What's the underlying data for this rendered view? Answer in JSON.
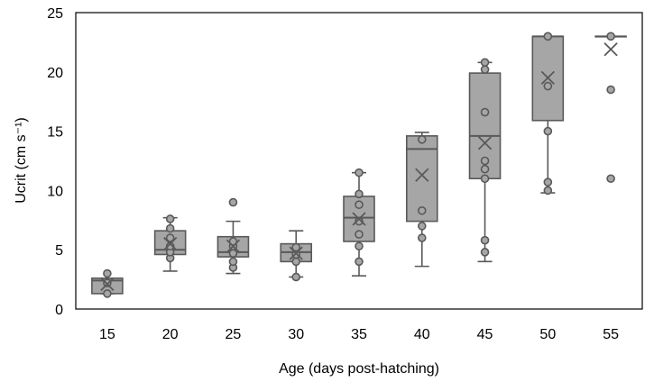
{
  "chart_data": {
    "type": "box",
    "title": "",
    "xlabel": "Age (days post-hatching)",
    "ylabel": "Ucrit (cm s⁻¹)",
    "ylim": [
      0,
      25
    ],
    "yticks": [
      "0",
      "5",
      "10",
      "15",
      "20",
      "25"
    ],
    "categories": [
      "15",
      "20",
      "25",
      "30",
      "35",
      "40",
      "45",
      "50",
      "55"
    ],
    "grid": false,
    "legend": "none",
    "colors": {
      "box_fill": "#a6a6a6",
      "stroke": "#595959",
      "point_fill": "#a6a6a6"
    },
    "boxes": [
      {
        "category": "15",
        "min": 1.3,
        "q1": 1.3,
        "median": 2.4,
        "q3": 2.6,
        "max": 2.6,
        "mean": 2.1,
        "points": [
          1.3,
          2.2,
          3.0
        ]
      },
      {
        "category": "20",
        "min": 3.2,
        "q1": 4.6,
        "median": 5.0,
        "q3": 6.6,
        "max": 7.7,
        "mean": 5.5,
        "points": [
          4.3,
          4.8,
          5.3,
          6.0,
          6.8,
          7.6
        ]
      },
      {
        "category": "25",
        "min": 3.0,
        "q1": 4.4,
        "median": 4.8,
        "q3": 6.1,
        "max": 7.4,
        "mean": 5.3,
        "points": [
          3.5,
          4.0,
          4.7,
          5.3,
          5.7,
          9.0
        ]
      },
      {
        "category": "30",
        "min": 2.7,
        "q1": 4.0,
        "median": 4.8,
        "q3": 5.5,
        "max": 6.6,
        "mean": 4.7,
        "points": [
          2.7,
          4.0,
          4.6,
          5.2
        ]
      },
      {
        "category": "35",
        "min": 2.8,
        "q1": 5.7,
        "median": 7.7,
        "q3": 9.5,
        "max": 11.5,
        "mean": 7.6,
        "points": [
          4.0,
          5.3,
          6.3,
          7.4,
          8.8,
          9.7,
          11.5
        ]
      },
      {
        "category": "40",
        "min": 3.6,
        "q1": 7.4,
        "median": 13.5,
        "q3": 14.6,
        "max": 14.9,
        "mean": 11.3,
        "points": [
          6.0,
          7.0,
          8.3,
          14.3
        ]
      },
      {
        "category": "45",
        "min": 4.0,
        "q1": 11.0,
        "median": 14.6,
        "q3": 19.9,
        "max": 20.8,
        "mean": 14.0,
        "points": [
          4.8,
          5.8,
          11.0,
          11.8,
          12.5,
          16.6,
          20.2,
          20.8
        ]
      },
      {
        "category": "50",
        "min": 9.8,
        "q1": 15.9,
        "median": 23.0,
        "q3": 23.0,
        "max": 23.0,
        "mean": 19.5,
        "points": [
          10.0,
          10.7,
          15.0,
          18.8,
          23.0
        ]
      },
      {
        "category": "55",
        "min": 23.0,
        "q1": 23.0,
        "median": 23.0,
        "q3": 23.0,
        "max": 23.0,
        "mean": 21.9,
        "points": [
          11.0,
          18.5,
          23.0
        ]
      }
    ]
  }
}
